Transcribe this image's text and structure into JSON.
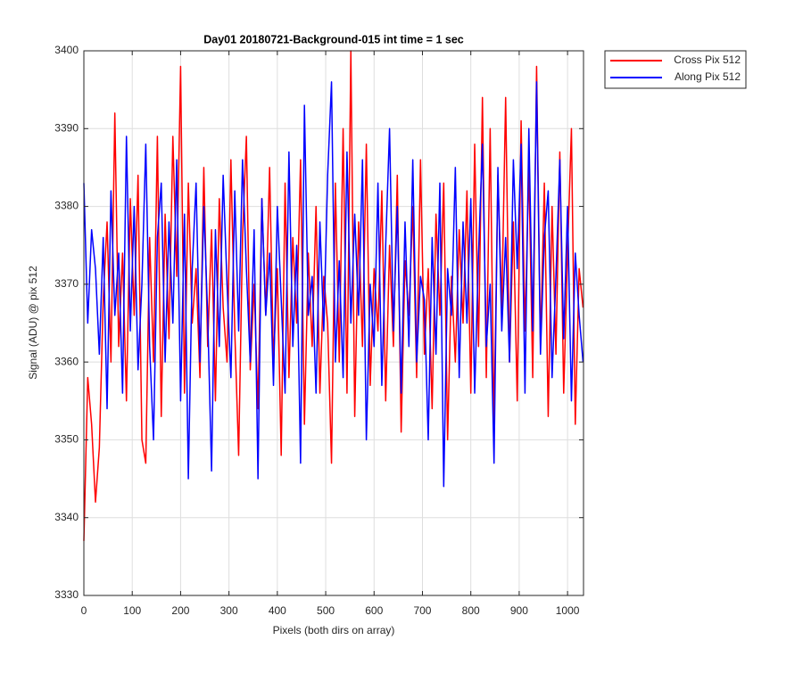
{
  "chart_data": {
    "type": "line",
    "title": "Day01 20180721-Background-015 int time = 1 sec",
    "x_label": "Pixels (both dirs on array)",
    "y_label": "Signal (ADU) @ pix 512",
    "x": [
      0,
      8,
      16,
      24,
      32,
      40,
      48,
      56,
      64,
      72,
      80,
      88,
      96,
      104,
      112,
      120,
      128,
      136,
      144,
      152,
      160,
      168,
      176,
      184,
      192,
      200,
      208,
      216,
      224,
      232,
      240,
      248,
      256,
      264,
      272,
      280,
      288,
      296,
      304,
      312,
      320,
      328,
      336,
      344,
      352,
      360,
      368,
      376,
      384,
      392,
      400,
      408,
      416,
      424,
      432,
      440,
      448,
      456,
      464,
      472,
      480,
      488,
      496,
      504,
      512,
      520,
      528,
      536,
      544,
      552,
      560,
      568,
      576,
      584,
      592,
      600,
      608,
      616,
      624,
      632,
      640,
      648,
      656,
      664,
      672,
      680,
      688,
      696,
      704,
      712,
      720,
      728,
      736,
      744,
      752,
      760,
      768,
      776,
      784,
      792,
      800,
      808,
      816,
      824,
      832,
      840,
      848,
      856,
      864,
      872,
      880,
      888,
      896,
      904,
      912,
      920,
      928,
      936,
      944,
      952,
      960,
      968,
      976,
      984,
      992,
      1000,
      1008,
      1016,
      1024,
      1032
    ],
    "series": [
      {
        "name": "Cross Pix 512",
        "color": "#ff0000",
        "values": [
          3337,
          3358,
          3352,
          3342,
          3349,
          3368,
          3378,
          3360,
          3392,
          3362,
          3374,
          3355,
          3381,
          3366,
          3384,
          3350,
          3347,
          3376,
          3360,
          3389,
          3353,
          3379,
          3363,
          3389,
          3371,
          3398,
          3356,
          3383,
          3365,
          3372,
          3358,
          3385,
          3362,
          3377,
          3355,
          3381,
          3367,
          3360,
          3386,
          3364,
          3348,
          3376,
          3389,
          3359,
          3370,
          3354,
          3381,
          3366,
          3385,
          3360,
          3372,
          3348,
          3383,
          3358,
          3376,
          3365,
          3386,
          3352,
          3374,
          3362,
          3380,
          3356,
          3371,
          3365,
          3347,
          3383,
          3360,
          3390,
          3356,
          3400,
          3353,
          3378,
          3362,
          3388,
          3357,
          3372,
          3364,
          3382,
          3355,
          3375,
          3362,
          3384,
          3351,
          3373,
          3366,
          3380,
          3358,
          3386,
          3361,
          3372,
          3354,
          3379,
          3366,
          3383,
          3350,
          3371,
          3360,
          3377,
          3365,
          3382,
          3356,
          3388,
          3362,
          3394,
          3358,
          3390,
          3352,
          3384,
          3367,
          3394,
          3360,
          3378,
          3355,
          3391,
          3364,
          3385,
          3358,
          3398,
          3362,
          3383,
          3353,
          3380,
          3361,
          3387,
          3356,
          3374,
          3390,
          3352,
          3372,
          3367
        ]
      },
      {
        "name": "Along Pix 512",
        "color": "#0000ff",
        "values": [
          3383,
          3365,
          3377,
          3372,
          3361,
          3376,
          3354,
          3382,
          3366,
          3374,
          3356,
          3389,
          3364,
          3380,
          3359,
          3370,
          3388,
          3362,
          3350,
          3376,
          3383,
          3360,
          3378,
          3365,
          3386,
          3355,
          3379,
          3345,
          3372,
          3383,
          3360,
          3380,
          3366,
          3346,
          3377,
          3362,
          3384,
          3370,
          3358,
          3382,
          3364,
          3386,
          3372,
          3360,
          3377,
          3345,
          3381,
          3366,
          3374,
          3357,
          3380,
          3368,
          3356,
          3387,
          3362,
          3375,
          3347,
          3393,
          3366,
          3371,
          3356,
          3378,
          3364,
          3384,
          3396,
          3360,
          3373,
          3358,
          3387,
          3365,
          3379,
          3366,
          3386,
          3350,
          3370,
          3362,
          3383,
          3357,
          3375,
          3390,
          3364,
          3380,
          3356,
          3378,
          3362,
          3386,
          3360,
          3371,
          3368,
          3350,
          3376,
          3361,
          3383,
          3344,
          3372,
          3366,
          3385,
          3358,
          3378,
          3365,
          3381,
          3356,
          3374,
          3388,
          3362,
          3370,
          3347,
          3385,
          3364,
          3376,
          3360,
          3386,
          3372,
          3388,
          3356,
          3390,
          3364,
          3396,
          3361,
          3376,
          3382,
          3358,
          3371,
          3386,
          3363,
          3380,
          3355,
          3374,
          3366,
          3360
        ]
      }
    ],
    "xlim": [
      0,
      1033
    ],
    "ylim": [
      3330,
      3400
    ],
    "xticks": [
      0,
      100,
      200,
      300,
      400,
      500,
      600,
      700,
      800,
      900,
      1000
    ],
    "yticks": [
      3330,
      3340,
      3350,
      3360,
      3370,
      3380,
      3390,
      3400
    ],
    "grid": true,
    "legend": "northeastoutside"
  }
}
